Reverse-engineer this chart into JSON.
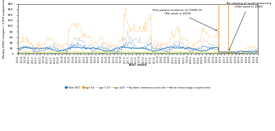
{
  "title": "",
  "ylabel": "Weekly EDDC Integers / 1,000 outpatients",
  "xlabel": "Year week",
  "ylim": [
    0,
    180
  ],
  "yticks": [
    0,
    20,
    40,
    60,
    80,
    100,
    120,
    140,
    160,
    180
  ],
  "annotation1_text": "First patient incidence of COVID-19\n(9th week in 2020)",
  "annotation2_text": "The relaxing of social distancing\n(19th week in 2020)",
  "vline1_week_idx": 218,
  "vline2_week_idx": 228,
  "colors": {
    "total_sdic": "#1f77b4",
    "age_0_6": "#ff8c00",
    "age_7_19": "#aaaaaa",
    "age_gte": "#e8c800",
    "epidemic_kerato": "#5588cc",
    "acute_hemorrhage": "#44aa44"
  },
  "legend_labels": [
    "Total SDIC",
    "age 0-6",
    "age 7-19",
    "age ≥20",
    "Epidemic keratoconjunctivitis",
    "Acute hemorrhagic conjunctivitis"
  ],
  "figsize": [
    4.0,
    1.91
  ],
  "dpi": 100
}
